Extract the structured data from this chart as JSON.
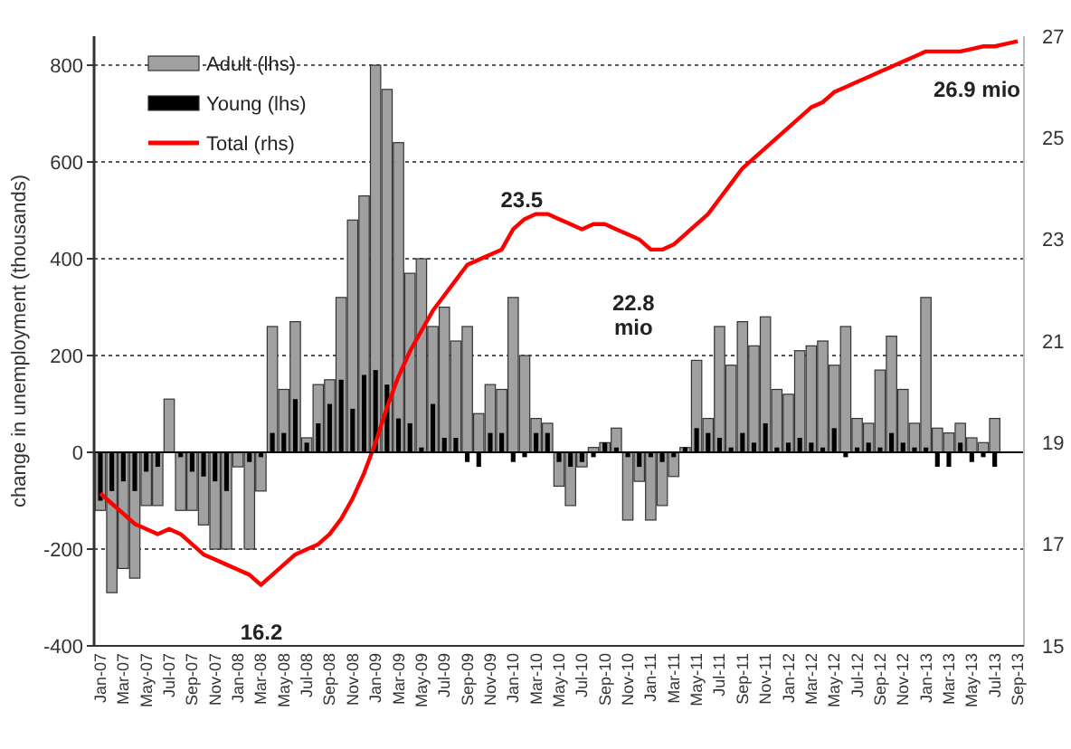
{
  "chart_data": {
    "type": "bar",
    "ylabel": "change in unemployment (thousands)",
    "categories": [
      "Jan-07",
      null,
      "Mar-07",
      null,
      "May-07",
      null,
      "Jul-07",
      null,
      "Sep-07",
      null,
      "Nov-07",
      null,
      "Jan-08",
      null,
      "Mar-08",
      null,
      "May-08",
      null,
      "Jul-08",
      null,
      "Sep-08",
      null,
      "Nov-08",
      null,
      "Jan-09",
      null,
      "Mar-09",
      null,
      "May-09",
      null,
      "Jul-09",
      null,
      "Sep-09",
      null,
      "Nov-09",
      null,
      "Jan-10",
      null,
      "Mar-10",
      null,
      "May-10",
      null,
      "Jul-10",
      null,
      "Sep-10",
      null,
      "Nov-10",
      null,
      "Jan-11",
      null,
      "Mar-11",
      null,
      "May-11",
      null,
      "Jul-11",
      null,
      "Sep-11",
      null,
      "Nov-11",
      null,
      "Jan-12",
      null,
      "Mar-12",
      null,
      "May-12",
      null,
      "Jul-12",
      null,
      "Sep-12",
      null,
      "Nov-12",
      null,
      "Jan-13",
      null,
      "Mar-13",
      null,
      "May-13",
      null,
      "Jul-13",
      null,
      "Sep-13"
    ],
    "series": [
      {
        "name": "Adult (lhs)",
        "color": "#a0a0a0",
        "values": [
          -120,
          -290,
          -240,
          -260,
          -110,
          -110,
          110,
          -120,
          -120,
          -150,
          -200,
          -200,
          -30,
          -200,
          -80,
          260,
          130,
          270,
          30,
          140,
          150,
          320,
          480,
          530,
          800,
          750,
          640,
          370,
          400,
          260,
          300,
          230,
          260,
          80,
          140,
          130,
          320,
          200,
          70,
          60,
          -70,
          -110,
          -30,
          10,
          20,
          50,
          -140,
          -60,
          -140,
          -110,
          -50,
          10,
          190,
          70,
          260,
          180,
          270,
          220,
          280,
          130,
          120,
          210,
          220,
          230,
          180,
          260,
          70,
          60,
          170,
          240,
          130,
          60,
          320,
          50,
          40,
          60,
          30,
          20,
          70,
          null,
          null
        ]
      },
      {
        "name": "Young (lhs)",
        "color": "#000000",
        "values": [
          -100,
          -80,
          -60,
          -80,
          -40,
          -30,
          0,
          -10,
          -40,
          -50,
          -60,
          -80,
          0,
          -20,
          -10,
          40,
          40,
          110,
          20,
          60,
          100,
          150,
          90,
          160,
          170,
          140,
          70,
          60,
          10,
          100,
          30,
          30,
          -20,
          -30,
          40,
          40,
          -20,
          -10,
          40,
          40,
          -20,
          -30,
          -20,
          -10,
          20,
          10,
          -10,
          -30,
          -10,
          -20,
          -10,
          10,
          50,
          40,
          30,
          10,
          40,
          20,
          60,
          10,
          20,
          30,
          20,
          10,
          50,
          -10,
          10,
          20,
          10,
          40,
          20,
          10,
          10,
          -30,
          -30,
          20,
          -20,
          -10,
          -30,
          null,
          null
        ]
      },
      {
        "name": "Total (rhs)",
        "type": "line",
        "axis": "y2",
        "color": "#ff0000",
        "values": [
          18.0,
          17.8,
          17.6,
          17.4,
          17.3,
          17.2,
          17.3,
          17.2,
          17.0,
          16.8,
          16.7,
          16.6,
          16.5,
          16.4,
          16.2,
          16.4,
          16.6,
          16.8,
          16.9,
          17.0,
          17.2,
          17.5,
          17.9,
          18.4,
          19.0,
          19.7,
          20.3,
          20.8,
          21.2,
          21.6,
          21.9,
          22.2,
          22.5,
          22.6,
          22.7,
          22.8,
          23.2,
          23.4,
          23.5,
          23.5,
          23.4,
          23.3,
          23.2,
          23.3,
          23.3,
          23.2,
          23.1,
          23.0,
          22.8,
          22.8,
          22.9,
          23.1,
          23.3,
          23.5,
          23.8,
          24.1,
          24.4,
          24.6,
          24.8,
          25.0,
          25.2,
          25.4,
          25.6,
          25.7,
          25.9,
          26.0,
          26.1,
          26.2,
          26.3,
          26.4,
          26.5,
          26.6,
          26.7,
          26.7,
          26.7,
          26.7,
          26.75,
          26.8,
          26.8,
          26.85,
          26.9
        ]
      }
    ],
    "ylim": [
      -400,
      860
    ],
    "yticks": [
      -400,
      -200,
      0,
      200,
      400,
      600,
      800
    ],
    "y2lim": [
      15,
      27
    ],
    "y2ticks": [
      15,
      17,
      19,
      21,
      23,
      25,
      27
    ],
    "grid": "y",
    "legend": "top left",
    "marker": "none",
    "line_style": "solid",
    "annotations": [
      "16.2",
      "23.5",
      "22.8\nmio",
      "26.9 mio"
    ]
  }
}
